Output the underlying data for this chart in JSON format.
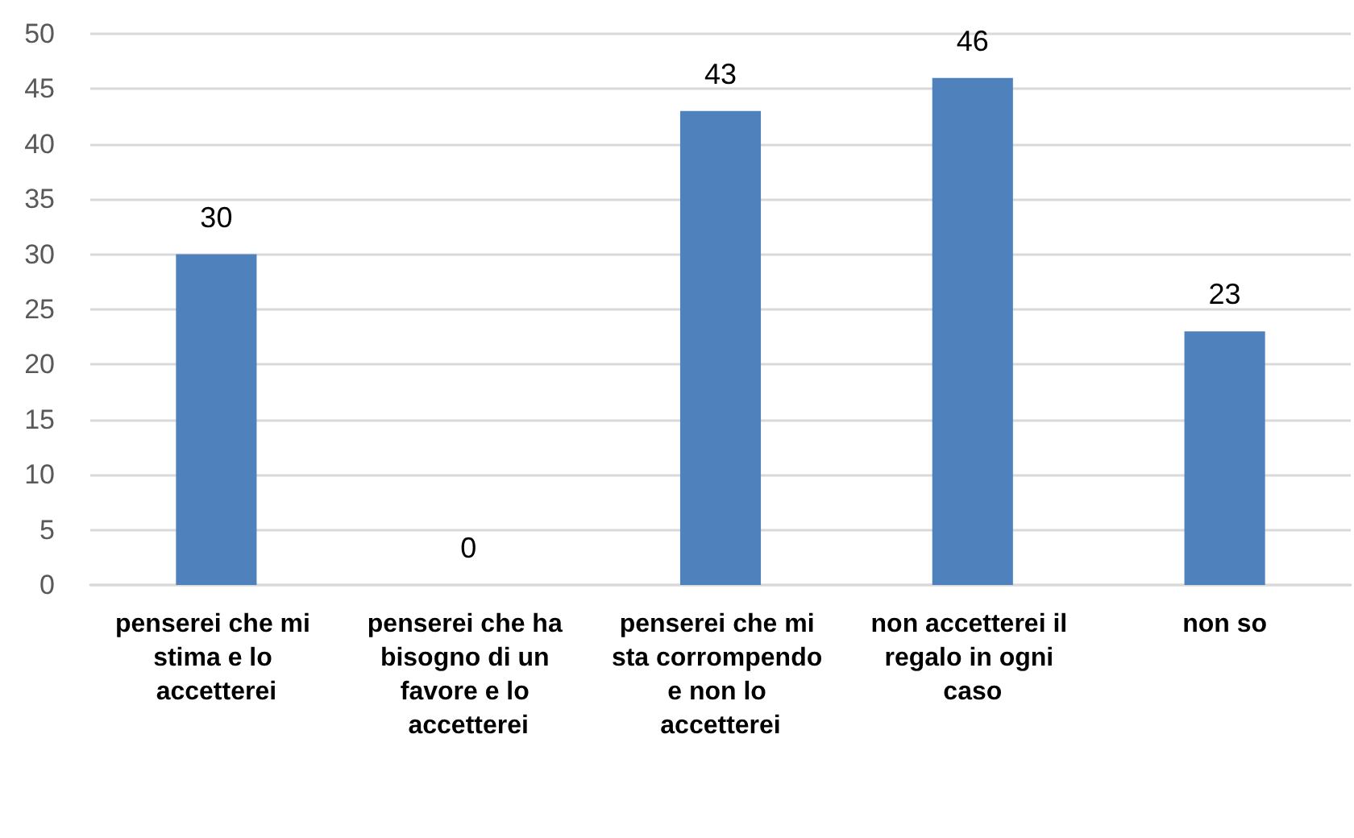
{
  "chart_data": {
    "type": "bar",
    "categories": [
      "penserei che mi stima e lo accetterei",
      "penserei che ha bisogno di un favore e lo accetterei",
      "penserei che mi sta corrompendo e non lo accetterei",
      "non accetterei il regalo in ogni caso",
      "non so"
    ],
    "values": [
      30,
      0,
      43,
      46,
      23
    ],
    "color": "#4f81bd",
    "ylim": [
      0,
      50
    ],
    "yticks": [
      0,
      5,
      10,
      15,
      20,
      25,
      30,
      35,
      40,
      45,
      50
    ],
    "grid": "y",
    "data_labels": true
  }
}
